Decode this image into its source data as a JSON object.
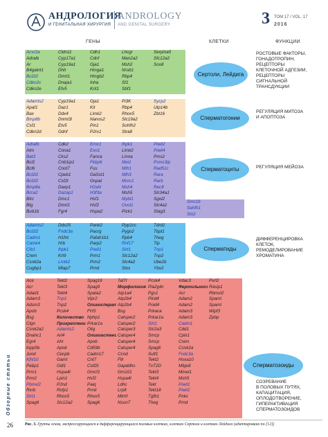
{
  "header": {
    "title_ru": "АНДРОЛОГИЯ",
    "subtitle_ru": "И ГЕНИТАЛЬНАЯ ХИРУРГИЯ",
    "title_en": "ANDROLOGY",
    "subtitle_en": "AND GENITAL SURGERY",
    "issue": "3",
    "volume": "ТОМ 17 / VOL. 17",
    "year": "2016"
  },
  "columns": {
    "genes": "ГЕНЫ",
    "cells": "КЛЕТКИ",
    "functions": "ФУНКЦИИ"
  },
  "blocks": [
    {
      "rows": [
        [
          "Acvr2a",
          "Cldn11",
          "Cdh1",
          "Lhcgr",
          "Serpina5"
        ],
        [
          "Adralb",
          "Cyp17a1",
          "Cdnf",
          "Man2a2",
          "Sfc12a2"
        ],
        [
          "Ar",
          "Cyp19a1",
          "Gja1",
          "Msh2",
          "Sox8"
        ],
        [
          "B4galnt1",
          "Dhh",
          "Hmga1",
          "Nrob1",
          ""
        ],
        [
          "Bcl2l2",
          "Dmrt1",
          "Hmgb2",
          "Rbp4",
          ""
        ],
        [
          "Cdkn2c",
          "Dnaja1",
          "Inha",
          "Sf1",
          ""
        ],
        [
          "Cdkn2e",
          "Efv5",
          "Krit1",
          "Sbf1",
          ""
        ]
      ]
    },
    {
      "rows": [
        [
          "Adamts2",
          "Cyp19a1",
          "Gja1",
          "Pi3K",
          "Sycp2"
        ],
        [
          "Apaf1",
          "Daz1",
          "Kit",
          "Rbp4",
          "Utp14b"
        ],
        [
          "Bax",
          "Ddx4",
          "Limk2",
          "Rhox5",
          "Zbt16"
        ],
        [
          "Bmp8b",
          "Dnmt3l",
          "Nanos2",
          "Slc19a2",
          ""
        ],
        [
          "Csf1",
          "Etv5",
          "Pin1",
          "Sohfh2",
          ""
        ],
        [
          "Cdkn2d",
          "Gdnf",
          "P2rx1",
          "Stra8",
          ""
        ]
      ]
    },
    {
      "rows": [
        [
          "Adrafb",
          "Cdk2",
          "Eroc1",
          "Ihpk1",
          "Piwil2"
        ],
        [
          "Atm",
          "Cona1",
          "Exo1",
          "Limk2",
          "Piwil4"
        ],
        [
          "Bat3",
          "Cks2",
          "Fanca",
          "Lmna",
          "Pms2"
        ],
        [
          "Bcl2",
          "Cnb1ip1",
          "Fkbp6",
          "Mei1",
          "Psmc3ip"
        ],
        [
          "Bcl6",
          "Cnot7",
          "Fus",
          "Mth1",
          "Rad51c"
        ],
        [
          "Bcl2l2",
          "Cpeb1",
          "GaSst1",
          "Mlh3",
          "Rara"
        ],
        [
          "Bcl2l2",
          "Csf2t",
          "Gnpat",
          "Morc1",
          "Rarb"
        ],
        [
          "Bmp8a",
          "Daxp1",
          "H2afx",
          "Msh4",
          "Rec8"
        ],
        [
          "Brca2",
          "Dazap1",
          "H3f3a",
          "Msh5",
          "Slc34a1"
        ],
        [
          "Btrc",
          "Dmc1",
          "Hsf1",
          "Mybl1",
          "Sgol2"
        ],
        [
          "Btg",
          "Dmrt1",
          "Hsf2",
          "Ovol1",
          "Slc4a2"
        ],
        [
          "Bub1b",
          "Fgr4",
          "Hspa2",
          "Pick1",
          "Stag3"
        ]
      ],
      "extra": [
        [
          "Smc1b"
        ],
        [
          "Sahfh1"
        ],
        [
          "Stx2"
        ]
      ]
    },
    {
      "rows": [
        [
          "Adamts2",
          "Ddx25",
          "Pank2",
          "Ppp1cc",
          "Tdrd1"
        ],
        [
          "Bcl2l2",
          "Fndc3a",
          "Pacrg",
          "Pygo2",
          "Tbpl1"
        ],
        [
          "Cadm1",
          "H1fnt",
          "Pafah1b1",
          "Rpb4",
          "Theg"
        ],
        [
          "Camk4",
          "Hrb",
          "Parp2",
          "Rnf17",
          "Tlp"
        ],
        [
          "Cib1",
          "Ihpk1",
          "Piwil1",
          "Sirt1",
          "Tnp1"
        ],
        [
          "Crem",
          "Krt9",
          "Prm1",
          "Slc12a2",
          "Tnp2"
        ],
        [
          "Csnk2a",
          "Lmtk2",
          "Prm2",
          "Slc4a2",
          "Ube2b"
        ],
        [
          "Cugbp1",
          "Mtap7",
          "Prnd",
          "Stxx",
          "Ybx2"
        ]
      ]
    },
    {
      "rows": [
        [
          "Ace",
          "Tekt2",
          "Spag16",
          "Taf7l",
          "Pcsk4",
          "Vdac3",
          "Pvrl2"
        ],
        [
          "Acr",
          "Tekt3",
          "Spag9",
          "Морфология",
          "Pla2g4c",
          "Фертильность",
          "Rasip1"
        ],
        [
          "Adad1",
          "Tekt4",
          "Spata2",
          "Atp1a4",
          "Pgs1",
          "Acr",
          "Rbmxl2"
        ],
        [
          "Adam3",
          "Tnp1",
          "Vipr2",
          "Atp2b4",
          "Plcd4",
          "Adam2",
          "Spaml"
        ],
        [
          "Adsm3",
          "Tnp2",
          "Олигосперато-",
          "Atp2b4",
          "Poid4",
          "Adam2",
          "Spaml"
        ],
        [
          "Apob",
          "Pcsk4",
          "FHS",
          "Bsg",
          "Prkaca",
          "Adam3",
          "Wipf3"
        ],
        [
          "Bsg",
          "Количество",
          "Nphp1",
          "Catsper2",
          "Prkar1a",
          "Adam3",
          "Zpbp"
        ],
        [
          "Clgn",
          "Прикрепление",
          "Prkar1a",
          "Catsper2",
          "Sirt1",
          "Cadm1",
          ""
        ],
        [
          "Csnk2a2",
          "Adamts2",
          "Olig",
          "Catsper3",
          "Slc2a3",
          "Cdd1",
          ""
        ],
        [
          "Dnahc1",
          "Arl4",
          "Олигоастенос-",
          "Catsper4",
          "Smcp",
          "Cplx1",
          ""
        ],
        [
          "Egr4",
          "Ahr",
          "Apob",
          "Catsper4",
          "Smcp",
          "Crem",
          ""
        ],
        [
          "Inpp5b",
          "Apob",
          "Cd59b",
          "Catsper4",
          "Spag6",
          "Csnk2a",
          ""
        ],
        [
          "Jund",
          "Cenpb",
          "Cadm17",
          "Ccnd",
          "Sulf1",
          "Fndc3a",
          ""
        ],
        [
          "Klhl10",
          "Gamt",
          "Cnt7",
          "Fllr",
          "Tekt2",
          "Hoxa10",
          ""
        ],
        [
          "Pebp1",
          "Gdl1",
          "Cstf2t",
          "Gapddhs",
          "TxT2D",
          "Mfge8",
          ""
        ],
        [
          "Prm1",
          "Hspa4l",
          "Gmcf1",
          "Gm101",
          "Tekt3",
          "Mmel1",
          ""
        ],
        [
          "Prm2",
          "Lpin1",
          "Hsf2",
          "Hspa4l",
          "Tekt4",
          "Msh5",
          ""
        ],
        [
          "Pbmxl2",
          "P2nd",
          "Paiq",
          "Ldhc",
          "Tekt",
          "Piwil1",
          ""
        ],
        [
          "Rxrb",
          "Rxfp1",
          "Prnd",
          "Lrp8",
          "Tekt18",
          "Piwil2",
          ""
        ],
        [
          "Sirt1",
          "Rhox5",
          "Rhox5",
          "Mtrhf",
          "Tgfb1",
          "Pnkc",
          ""
        ],
        [
          "Spag6",
          "Sic12a2",
          "Spag6",
          "Nsun7",
          "Theg",
          "Prnd",
          ""
        ]
      ]
    }
  ],
  "cells": {
    "c1": "Сертоли, Лейдига",
    "c2": "Сперматогонии",
    "c3": "Сперматоциты",
    "c4": "Сперматиды",
    "c5": "Сперматозоиды"
  },
  "functions": {
    "f1": [
      "РОСТОВЫЕ ФАКТОРЫ,",
      "ГОНАДОТРОПИН,",
      "РЕЦЕПТОРЫ",
      "КЛЕТОЧНОЙ АДГЕЗИИ,",
      "РЕЦЕПТОРЫ",
      "СИГНАЛЬНОЙ",
      "ТРАНСДУКЦИИ"
    ],
    "f2": [
      "РЕГУЛЯЦИЯ МИТОЗА",
      "И АПОПТОЗА"
    ],
    "f3": [
      "РЕГУЛЯЦИЯ МЕЙОЗА"
    ],
    "f4": [
      "ДИФФЕРЕНЦИРОВКА",
      "КЛЕТОК,",
      "РЕМОДЕЛИРОВАНИЕ",
      "ХРОМАТИНА"
    ],
    "f5": [
      "СОЗРЕВАНИЕ",
      "В ПОЛОВЫХ ПУТЯХ,",
      "КАПАЦИТАЦИЯ,",
      "ОПЛОДОТВОРЕНИЕ,",
      "ГИПЕРАКТИВАЦИЯ",
      "СПЕРМАТОЗОИДОВ"
    ]
  },
  "side": "Обзорные статьи",
  "page": "26",
  "caption_label": "Рис. 3.",
  "caption": "Группы генов, экспрессирующихся в дифференцирующихся половых клетках, клетках Сертоли и клетках Лейдига (адаптировано по [12])",
  "colors": {
    "sertoli": "#a8d78f",
    "spermatogonia": "#fbe3c2",
    "spermatocytes": "#b1a7dc",
    "spermatids": "#66c1ee",
    "spermatozoa": "#f08b87"
  }
}
